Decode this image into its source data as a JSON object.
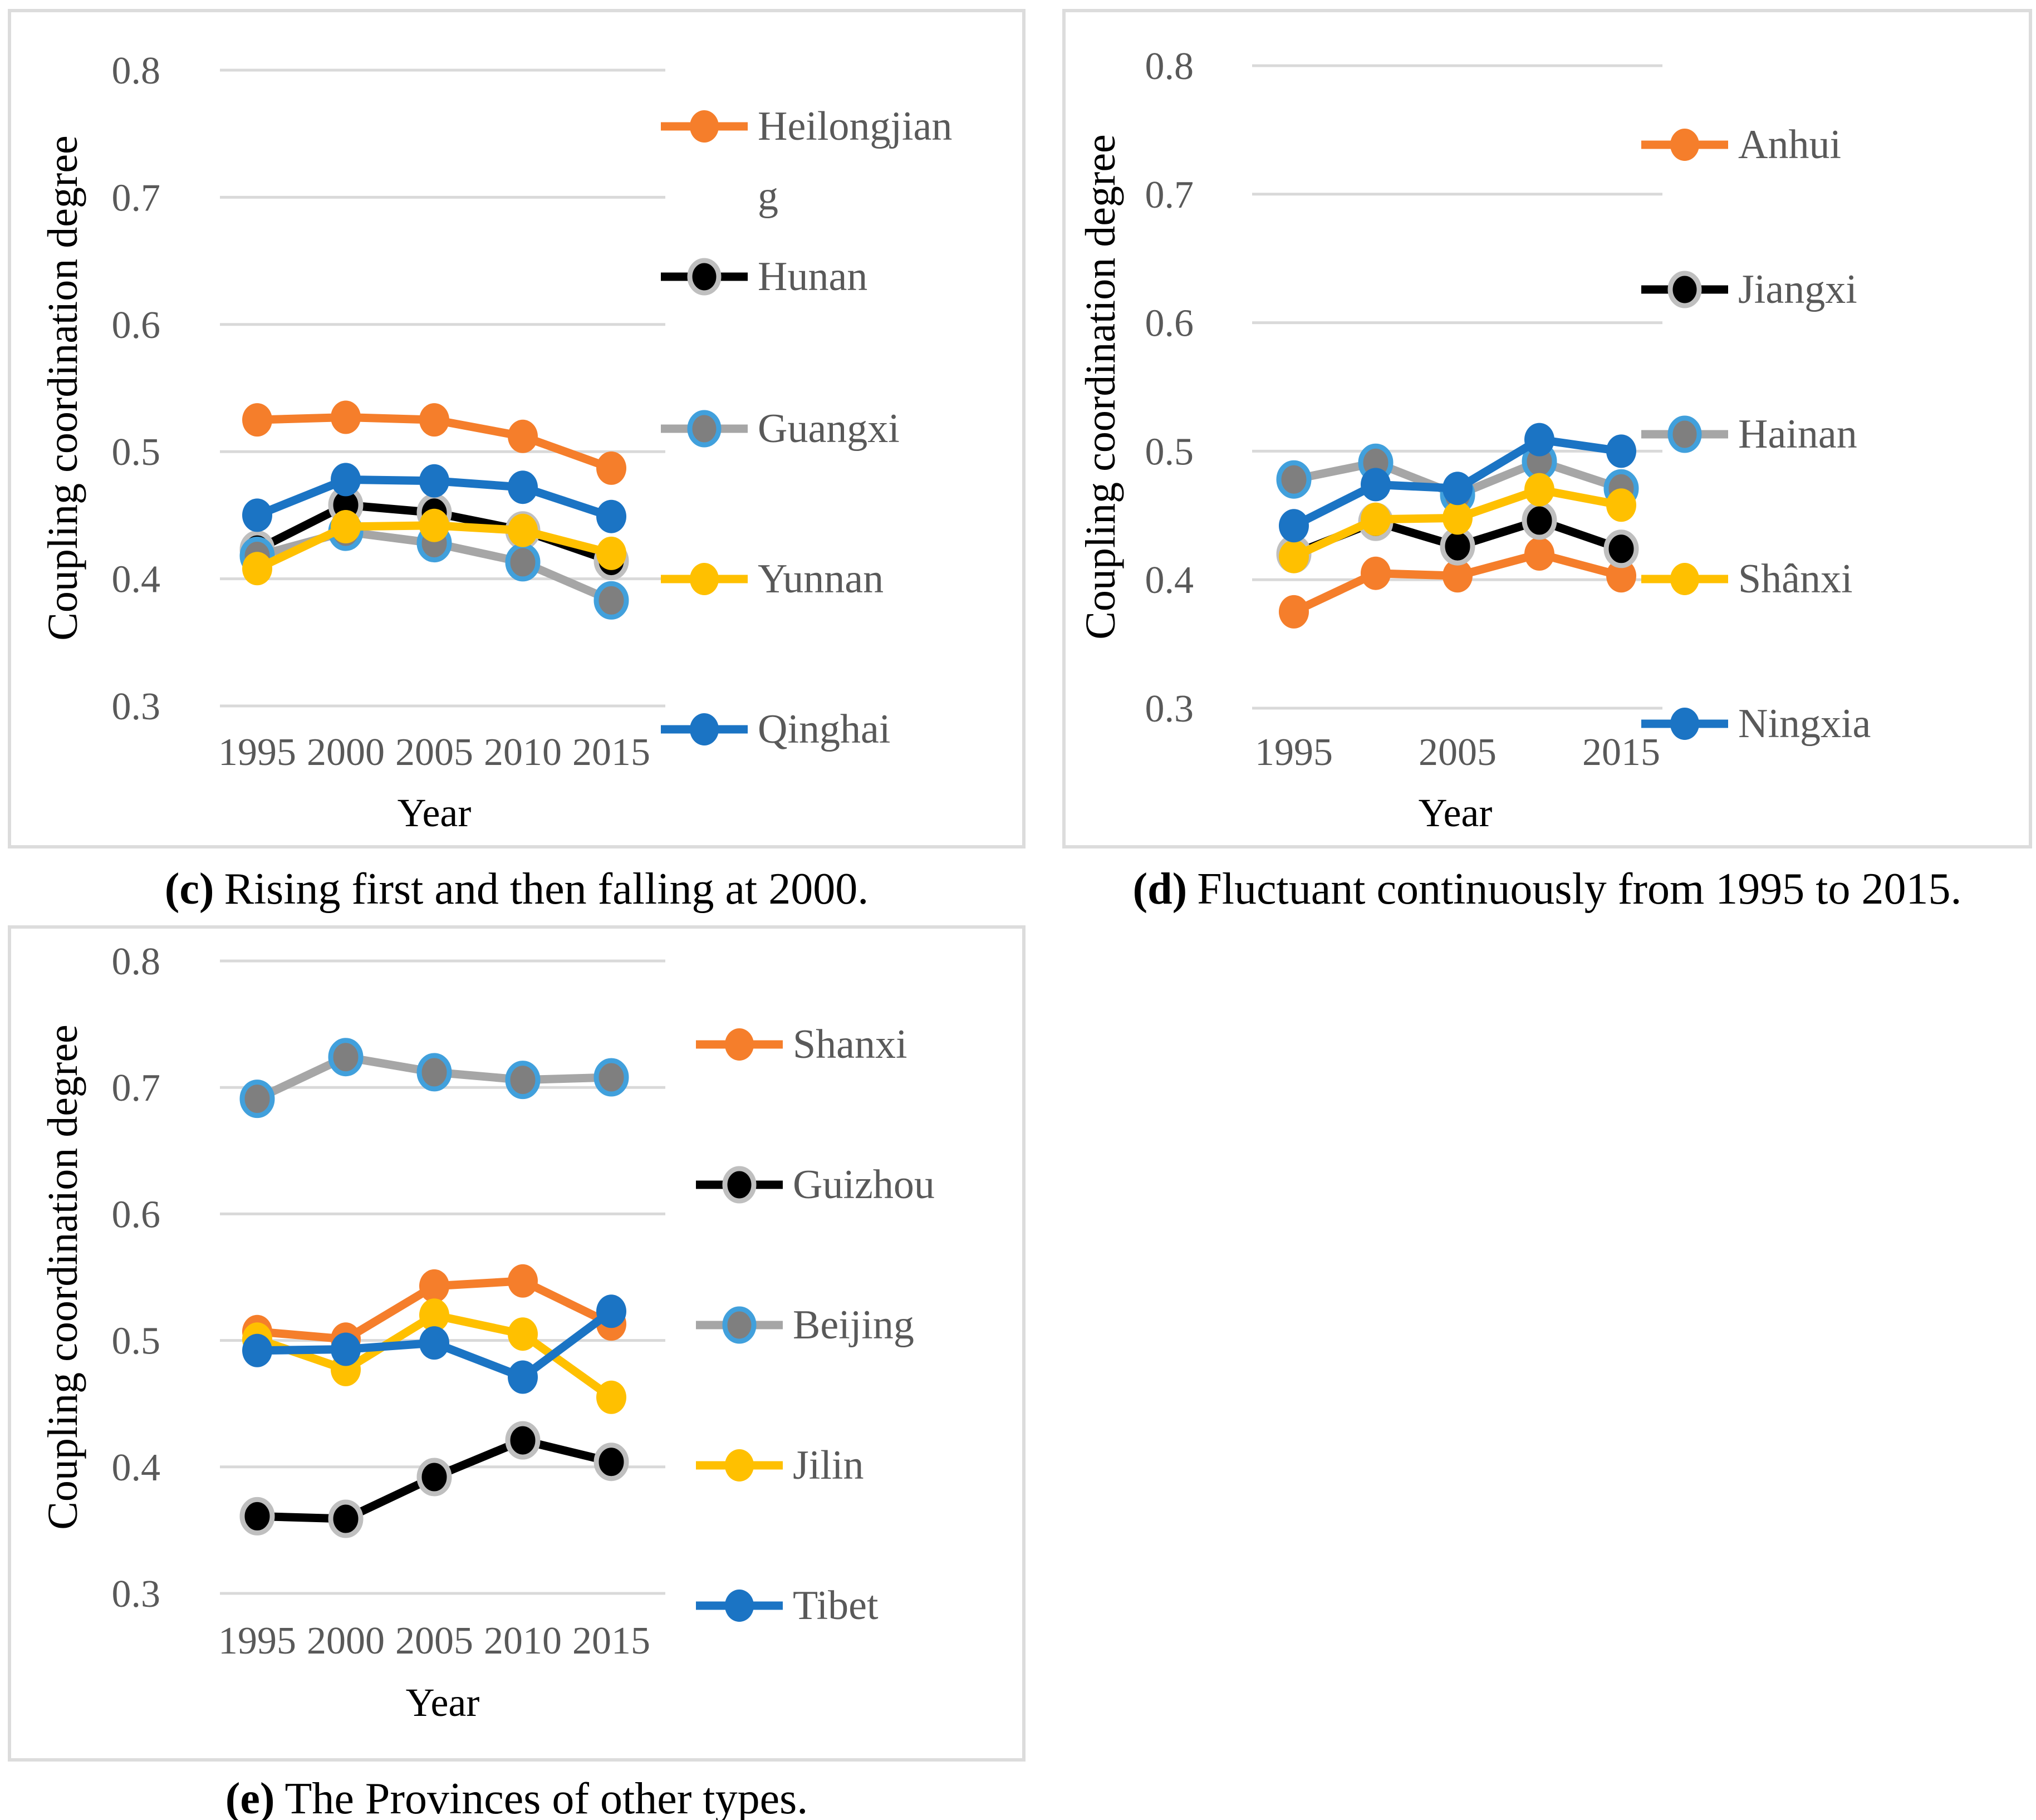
{
  "palette": {
    "orange": "#F57E2B",
    "black": "#000000",
    "gray_line": "#A6A6A6",
    "gray_fill": "#7F7F7F",
    "yellow": "#FFC000",
    "blue": "#1B74C4",
    "light_blue_outline": "#41A0DC",
    "silver_outline": "#BFBFBF",
    "gridline": "#D9D9D9",
    "tick_text": "#595959",
    "axis_title_text": "#000000",
    "panel_border": "#DCDCDC"
  },
  "chart_data": [
    {
      "id": "c",
      "type": "line",
      "caption_tag": "(c)",
      "caption": "Rising first and then falling at 2000.",
      "ylabel": "Coupling coordination degree",
      "xlabel": "Year",
      "ylim": [
        0.3,
        0.8
      ],
      "grid": true,
      "legend_position": "right",
      "y_ticks": [
        0.8,
        0.7,
        0.6,
        0.5,
        0.4,
        0.3
      ],
      "x": [
        1995,
        2000,
        2005,
        2010,
        2015
      ],
      "x_ticks": [
        1995,
        2000,
        2005,
        2010,
        2015
      ],
      "series": [
        {
          "name": "Heilongjiang",
          "color": "orange",
          "marker_fill": "orange",
          "marker_outline": null,
          "values": [
            0.525,
            0.527,
            0.525,
            0.512,
            0.487
          ]
        },
        {
          "name": "Hunan",
          "color": "black",
          "marker_fill": "black",
          "marker_outline": "silver_outline",
          "values": [
            0.423,
            0.458,
            0.452,
            0.438,
            0.414
          ]
        },
        {
          "name": "Guangxi",
          "color": "gray_line",
          "marker_fill": "gray_fill",
          "marker_outline": "light_blue_outline",
          "values": [
            0.418,
            0.437,
            0.428,
            0.413,
            0.383
          ]
        },
        {
          "name": "Yunnan",
          "color": "yellow",
          "marker_fill": "yellow",
          "marker_outline": null,
          "values": [
            0.408,
            0.441,
            0.442,
            0.438,
            0.42
          ]
        },
        {
          "name": "Qinghai",
          "color": "blue",
          "marker_fill": "blue",
          "marker_outline": null,
          "values": [
            0.45,
            0.478,
            0.477,
            0.472,
            0.449
          ]
        }
      ]
    },
    {
      "id": "d",
      "type": "line",
      "caption_tag": "(d)",
      "caption": "Fluctuant continuously from 1995 to 2015.",
      "ylabel": "Coupling coordination degree",
      "xlabel": "Year",
      "ylim": [
        0.3,
        0.8
      ],
      "grid": true,
      "legend_position": "right",
      "y_ticks": [
        0.8,
        0.7,
        0.6,
        0.5,
        0.4,
        0.3
      ],
      "x": [
        1995,
        2000,
        2005,
        2010,
        2015
      ],
      "x_ticks": [
        1995,
        2005,
        2015
      ],
      "series": [
        {
          "name": "Anhui",
          "color": "orange",
          "marker_fill": "orange",
          "marker_outline": null,
          "values": [
            0.375,
            0.405,
            0.403,
            0.42,
            0.403
          ]
        },
        {
          "name": "Jiangxi",
          "color": "black",
          "marker_fill": "black",
          "marker_outline": "silver_outline",
          "values": [
            0.42,
            0.445,
            0.426,
            0.446,
            0.424
          ]
        },
        {
          "name": "Hainan",
          "color": "gray_line",
          "marker_fill": "gray_fill",
          "marker_outline": "light_blue_outline",
          "values": [
            0.478,
            0.491,
            0.466,
            0.492,
            0.471
          ]
        },
        {
          "name": "Shânxi",
          "color": "yellow",
          "marker_fill": "yellow",
          "marker_outline": null,
          "values": [
            0.418,
            0.447,
            0.448,
            0.47,
            0.458
          ]
        },
        {
          "name": "Ningxia",
          "color": "blue",
          "marker_fill": "blue",
          "marker_outline": null,
          "values": [
            0.442,
            0.474,
            0.471,
            0.509,
            0.5
          ]
        }
      ]
    },
    {
      "id": "e",
      "type": "line",
      "caption_tag": "(e)",
      "caption": "The Provinces of other types.",
      "ylabel": "Coupling coordination degree",
      "xlabel": "Year",
      "ylim": [
        0.3,
        0.8
      ],
      "grid": true,
      "legend_position": "right",
      "y_ticks": [
        0.8,
        0.7,
        0.6,
        0.5,
        0.4,
        0.3
      ],
      "x": [
        1995,
        2000,
        2005,
        2010,
        2015
      ],
      "x_ticks": [
        1995,
        2000,
        2005,
        2010,
        2015
      ],
      "series": [
        {
          "name": "Shanxi",
          "color": "orange",
          "marker_fill": "orange",
          "marker_outline": null,
          "values": [
            0.507,
            0.501,
            0.543,
            0.547,
            0.513
          ]
        },
        {
          "name": "Guizhou",
          "color": "black",
          "marker_fill": "black",
          "marker_outline": "silver_outline",
          "values": [
            0.361,
            0.359,
            0.392,
            0.421,
            0.404
          ]
        },
        {
          "name": "Beijing",
          "color": "gray_line",
          "marker_fill": "gray_fill",
          "marker_outline": "light_blue_outline",
          "values": [
            0.691,
            0.724,
            0.712,
            0.706,
            0.708
          ]
        },
        {
          "name": "Jilin",
          "color": "yellow",
          "marker_fill": "yellow",
          "marker_outline": null,
          "values": [
            0.501,
            0.477,
            0.52,
            0.505,
            0.455
          ]
        },
        {
          "name": "Tibet",
          "color": "blue",
          "marker_fill": "blue",
          "marker_outline": null,
          "values": [
            0.492,
            0.493,
            0.498,
            0.471,
            0.523
          ]
        }
      ]
    }
  ]
}
